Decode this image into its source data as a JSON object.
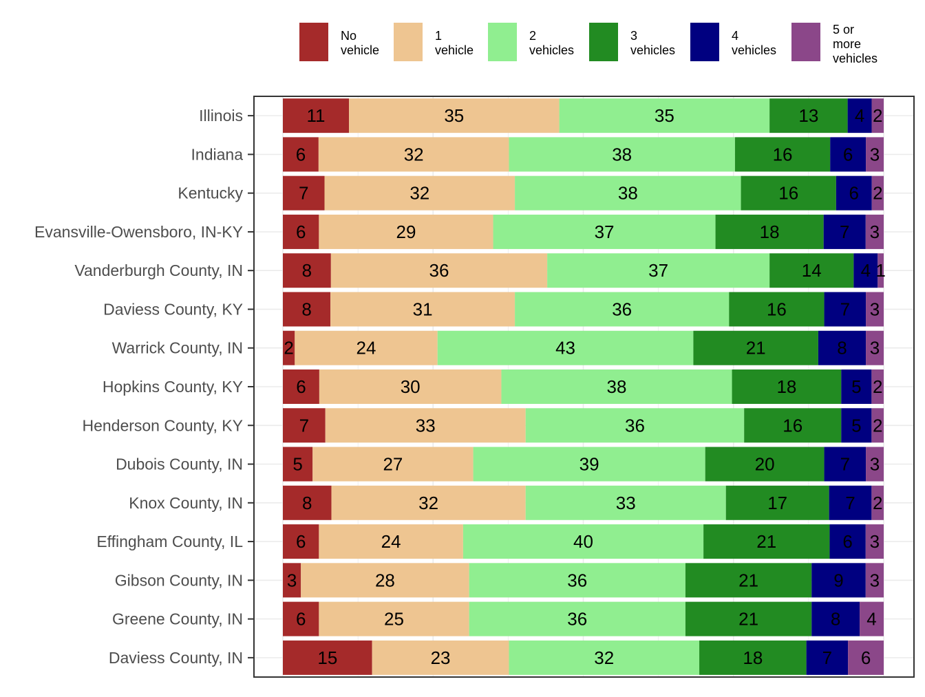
{
  "chart_data": {
    "type": "bar",
    "orientation": "horizontal",
    "stacked": true,
    "xlim": [
      0,
      100
    ],
    "grid": true,
    "legend_position": "top",
    "categories": [
      "Illinois",
      "Indiana",
      "Kentucky",
      "Evansville-Owensboro, IN-KY",
      "Vanderburgh County, IN",
      "Daviess County, KY",
      "Warrick County, IN",
      "Hopkins County, KY",
      "Henderson County, KY",
      "Dubois County, IN",
      "Knox County, IN",
      "Effingham County, IL",
      "Gibson County, IN",
      "Greene County, IN",
      "Daviess County, IN"
    ],
    "series": [
      {
        "name": "No vehicle",
        "legend_lines": [
          "No",
          "vehicle"
        ],
        "color": "#A52A2A",
        "values": [
          11,
          6,
          7,
          6,
          8,
          8,
          2,
          6,
          7,
          5,
          8,
          6,
          3,
          6,
          15
        ]
      },
      {
        "name": "1 vehicle",
        "legend_lines": [
          "1",
          "vehicle"
        ],
        "color": "#EEC591",
        "values": [
          35,
          32,
          32,
          29,
          36,
          31,
          24,
          30,
          33,
          27,
          32,
          24,
          28,
          25,
          23
        ]
      },
      {
        "name": "2 vehicles",
        "legend_lines": [
          "2",
          "vehicles"
        ],
        "color": "#90EE90",
        "values": [
          35,
          38,
          38,
          37,
          37,
          36,
          43,
          38,
          36,
          39,
          33,
          40,
          36,
          36,
          32
        ]
      },
      {
        "name": "3 vehicles",
        "legend_lines": [
          "3",
          "vehicles"
        ],
        "color": "#228B22",
        "values": [
          13,
          16,
          16,
          18,
          14,
          16,
          21,
          18,
          16,
          20,
          17,
          21,
          21,
          21,
          18
        ]
      },
      {
        "name": "4 vehicles",
        "legend_lines": [
          "4",
          "vehicles"
        ],
        "color": "#000080",
        "values": [
          4,
          6,
          6,
          7,
          4,
          7,
          8,
          5,
          5,
          7,
          7,
          6,
          9,
          8,
          7
        ]
      },
      {
        "name": "5 or more vehicles",
        "legend_lines": [
          "5 or",
          "more",
          "vehicles"
        ],
        "color": "#8B4789",
        "values": [
          2,
          3,
          2,
          3,
          1,
          3,
          3,
          2,
          2,
          3,
          2,
          3,
          3,
          4,
          6
        ]
      }
    ]
  }
}
